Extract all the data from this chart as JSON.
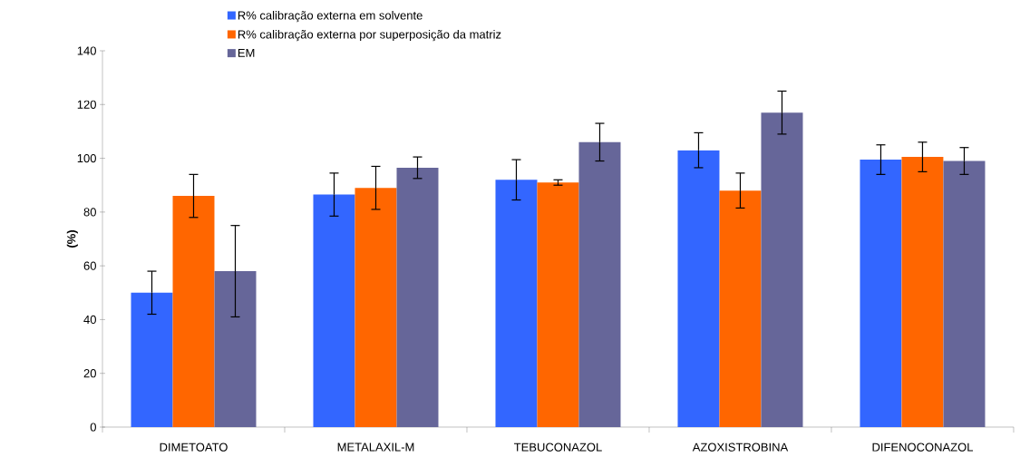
{
  "chart_data": {
    "type": "bar",
    "ylabel": "(%)",
    "categories": [
      "DIMETOATO",
      "METALAXIL-M",
      "TEBUCONAZOL",
      "AZOXISTROBINA",
      "DIFENOCONAZOL"
    ],
    "series": [
      {
        "name": "R% calibração externa em solvente",
        "color": "#3366ff",
        "values": [
          50,
          86.5,
          92,
          103,
          99.5
        ],
        "errors": [
          8,
          8,
          7.5,
          6.5,
          5.5
        ]
      },
      {
        "name": "R% calibração externa por superposição da matriz",
        "color": "#ff6600",
        "values": [
          86,
          89,
          91,
          88,
          100.5
        ],
        "errors": [
          8,
          8,
          1,
          6.5,
          5.5
        ]
      },
      {
        "name": "EM",
        "color": "#666699",
        "values": [
          58,
          96.5,
          106,
          117,
          99
        ],
        "errors": [
          17,
          4,
          7,
          8,
          5
        ]
      }
    ],
    "ylim": [
      0,
      140
    ],
    "yticks": [
      0,
      20,
      40,
      60,
      80,
      100,
      120,
      140
    ],
    "grid": false,
    "legend": "top"
  }
}
